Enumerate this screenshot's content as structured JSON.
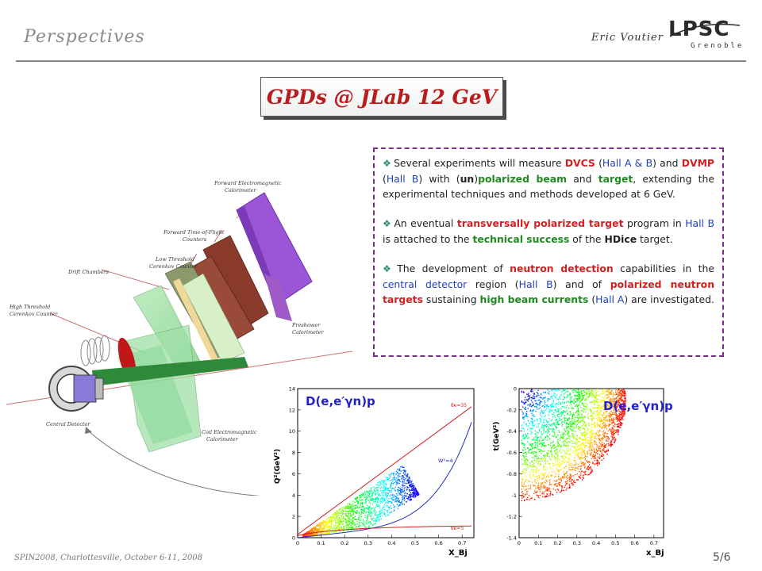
{
  "header": {
    "title": "Perspectives",
    "author": "Eric Voutier",
    "logo": {
      "main": "LPSC",
      "sub": "Grenoble"
    }
  },
  "slide_title": "GPDs @ JLab 12 GeV",
  "bullets": [
    {
      "segments": [
        {
          "text": "Several experiments will measure ",
          "style": "plain"
        },
        {
          "text": "DVCS",
          "style": "red"
        },
        {
          "text": " (",
          "style": "plain"
        },
        {
          "text": "Hall A & B",
          "style": "blue"
        },
        {
          "text": ") and ",
          "style": "plain"
        },
        {
          "text": "DVMP",
          "style": "red"
        },
        {
          "text": " (",
          "style": "plain"
        },
        {
          "text": "Hall B",
          "style": "blue"
        },
        {
          "text": ") with (",
          "style": "plain"
        },
        {
          "text": "un",
          "style": "bold"
        },
        {
          "text": ")",
          "style": "plain"
        },
        {
          "text": "polarized beam",
          "style": "green"
        },
        {
          "text": " and ",
          "style": "plain"
        },
        {
          "text": "target",
          "style": "green"
        },
        {
          "text": ", extending the experimental techniques and methods developed at 6 GeV.",
          "style": "plain"
        }
      ]
    },
    {
      "segments": [
        {
          "text": "An eventual ",
          "style": "plain"
        },
        {
          "text": "transversally polarized target",
          "style": "red"
        },
        {
          "text": " program in ",
          "style": "plain"
        },
        {
          "text": "Hall B",
          "style": "blue"
        },
        {
          "text": " is attached to the ",
          "style": "plain"
        },
        {
          "text": "technical success",
          "style": "green"
        },
        {
          "text": " of the ",
          "style": "plain"
        },
        {
          "text": "HDice",
          "style": "bold"
        },
        {
          "text": " target.",
          "style": "plain"
        }
      ]
    },
    {
      "segments": [
        {
          "text": "The development of ",
          "style": "plain"
        },
        {
          "text": "neutron detection",
          "style": "red"
        },
        {
          "text": " capabilities in the ",
          "style": "plain"
        },
        {
          "text": "central detector",
          "style": "blue"
        },
        {
          "text": " region (",
          "style": "plain"
        },
        {
          "text": "Hall B",
          "style": "blue"
        },
        {
          "text": ") and of ",
          "style": "plain"
        },
        {
          "text": "polarized neutron targets",
          "style": "red"
        },
        {
          "text": " sustaining ",
          "style": "plain"
        },
        {
          "text": "high beam currents",
          "style": "green"
        },
        {
          "text": " (",
          "style": "plain"
        },
        {
          "text": "Hall A",
          "style": "blue"
        },
        {
          "text": ") are investigated.",
          "style": "plain"
        }
      ]
    }
  ],
  "detector_labels": {
    "forward_em_cal": [
      "Forward Electromagnetic",
      "Calorimeter"
    ],
    "forward_tof": [
      "Forward Time-of-Flight",
      "Counters"
    ],
    "low_threshold": [
      "Low Threshold",
      "Cerenkov Counter"
    ],
    "drift_chambers": [
      "Drift Chambers"
    ],
    "high_threshold": [
      "High Threshold",
      "Cerenkov Counter"
    ],
    "preshower": [
      "Preshower",
      "Calorimeter"
    ],
    "coil_em_cal": [
      "Coil Electromagnetic",
      "Calorimeter"
    ],
    "central_detector": [
      "Central Detector"
    ]
  },
  "colors": {
    "title_red": "#b81c1c",
    "box_border": "#7a2c8a",
    "plot_label": "#2222cc"
  },
  "chart_data": [
    {
      "type": "scatter",
      "label": "D(e,e′γn)p",
      "xlabel": "X_Bj",
      "ylabel": "Q²(GeV²)",
      "xlim": [
        0,
        0.75
      ],
      "ylim": [
        0,
        14
      ],
      "x_ticks": [
        "0",
        "0.1",
        "0.2",
        "0.3",
        "0.4",
        "0.5",
        "0.6",
        "0.7"
      ],
      "y_ticks": [
        "0",
        "2",
        "4",
        "6",
        "8",
        "10",
        "12",
        "14"
      ],
      "annotations": [
        "θe=35",
        "W²=4",
        "θe=5"
      ]
    },
    {
      "type": "scatter",
      "label": "D(e,e′γn)p",
      "xlabel": "x_Bj",
      "ylabel": "t(GeV²)",
      "xlim": [
        0,
        0.75
      ],
      "ylim": [
        -1.4,
        0
      ],
      "x_ticks": [
        "0",
        "0.1",
        "0.2",
        "0.3",
        "0.4",
        "0.5",
        "0.6",
        "0.7"
      ],
      "y_ticks": [
        "0",
        "-0.2",
        "-0.4",
        "-0.6",
        "-0.8",
        "-1",
        "-1.2",
        "-1.4"
      ]
    }
  ],
  "footer": {
    "conference": "SPIN2008, Charlottesville, October 6-11, 2008",
    "page": "5/6"
  }
}
